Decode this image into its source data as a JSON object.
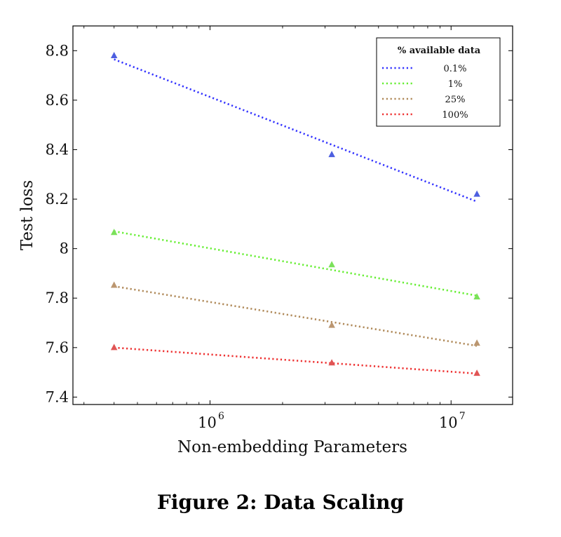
{
  "caption": "Figure 2: Data Scaling",
  "chart_data": {
    "type": "line",
    "xlabel": "Non-embedding Parameters",
    "ylabel": "Test loss",
    "xscale": "log",
    "xlim": [
      270000,
      18000000
    ],
    "ylim": [
      7.37,
      8.9
    ],
    "xticks": [
      {
        "value": 1000000,
        "base": "10",
        "exp": "6"
      },
      {
        "value": 10000000,
        "base": "10",
        "exp": "7"
      }
    ],
    "yticks": [
      {
        "value": 7.4,
        "label": "7.4"
      },
      {
        "value": 7.6,
        "label": "7.6"
      },
      {
        "value": 7.8,
        "label": "7.8"
      },
      {
        "value": 8.0,
        "label": "8"
      },
      {
        "value": 8.2,
        "label": "8.2"
      },
      {
        "value": 8.4,
        "label": "8.4"
      },
      {
        "value": 8.6,
        "label": "8.6"
      },
      {
        "value": 8.8,
        "label": "8.8"
      }
    ],
    "grid": false,
    "legend": {
      "title": "% available data",
      "position": "top-right"
    },
    "series": [
      {
        "name": "0.1%",
        "color": "#3333ff",
        "marker_color": "#4d5fe0",
        "points": [
          [
            400000,
            8.78
          ],
          [
            3200000,
            8.38
          ],
          [
            12800000,
            8.22
          ]
        ],
        "fit": [
          [
            400000,
            8.765
          ],
          [
            12800000,
            8.19
          ]
        ]
      },
      {
        "name": "1%",
        "color": "#66ee33",
        "marker_color": "#7be15a",
        "points": [
          [
            400000,
            8.065
          ],
          [
            3200000,
            7.935
          ],
          [
            12800000,
            7.805
          ]
        ],
        "fit": [
          [
            400000,
            8.07
          ],
          [
            12800000,
            7.81
          ]
        ]
      },
      {
        "name": "25%",
        "color": "#b08a5a",
        "marker_color": "#bb9670",
        "points": [
          [
            400000,
            7.852
          ],
          [
            3200000,
            7.69
          ],
          [
            12800000,
            7.618
          ]
        ],
        "fit": [
          [
            400000,
            7.848
          ],
          [
            12800000,
            7.607
          ]
        ]
      },
      {
        "name": "100%",
        "color": "#ee3333",
        "marker_color": "#e05555",
        "points": [
          [
            400000,
            7.6
          ],
          [
            3200000,
            7.538
          ],
          [
            12800000,
            7.496
          ]
        ],
        "fit": [
          [
            400000,
            7.6
          ],
          [
            12800000,
            7.495
          ]
        ]
      }
    ]
  }
}
